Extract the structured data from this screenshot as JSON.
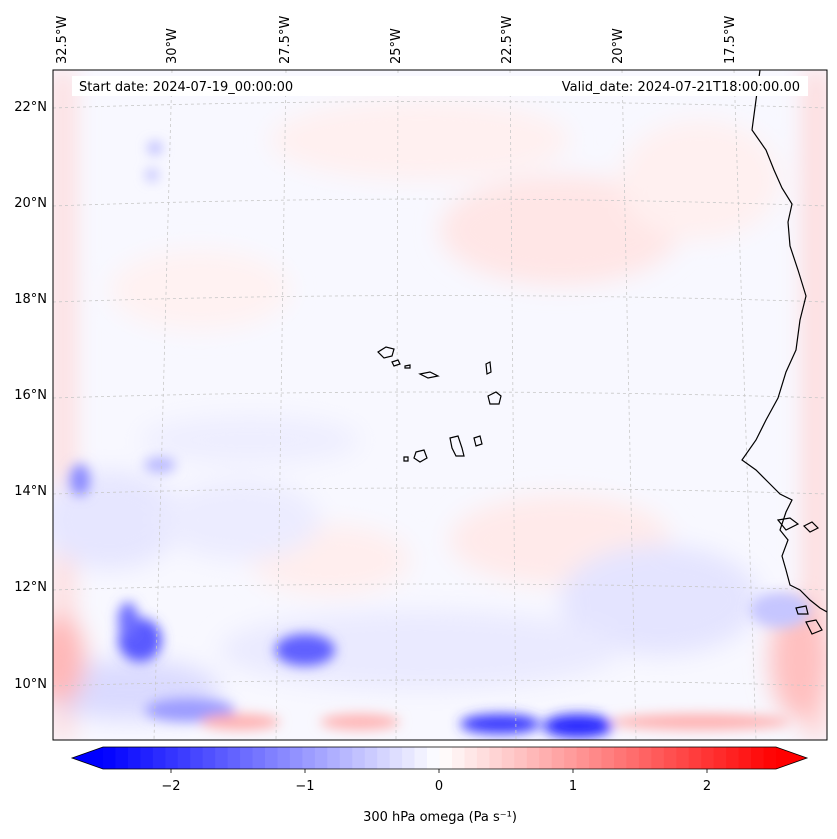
{
  "map": {
    "start_label": "Start date: 2024-07-19_00:00:00",
    "valid_label": "Valid_date: 2024-07-21T18:00:00.00",
    "lon_labels": [
      "32.5°W",
      "30°W",
      "27.5°W",
      "25°W",
      "22.5°W",
      "20°W",
      "17.5°W"
    ],
    "lat_labels": [
      "22°N",
      "20°N",
      "18°N",
      "16°N",
      "14°N",
      "12°N",
      "10°N"
    ]
  },
  "colorbar": {
    "label": "300 hPa omega (Pa s⁻¹)",
    "ticks": [
      "−2",
      "−1",
      "0",
      "1",
      "2"
    ],
    "min": -2.7,
    "max": 2.7,
    "negative_color": "#0000ff",
    "positive_color": "#ff0000",
    "center_color": "#ffffff"
  },
  "colors": {
    "background": "#f8f8ff",
    "coastline": "#000000",
    "gridline": "#c8c8c8"
  }
}
